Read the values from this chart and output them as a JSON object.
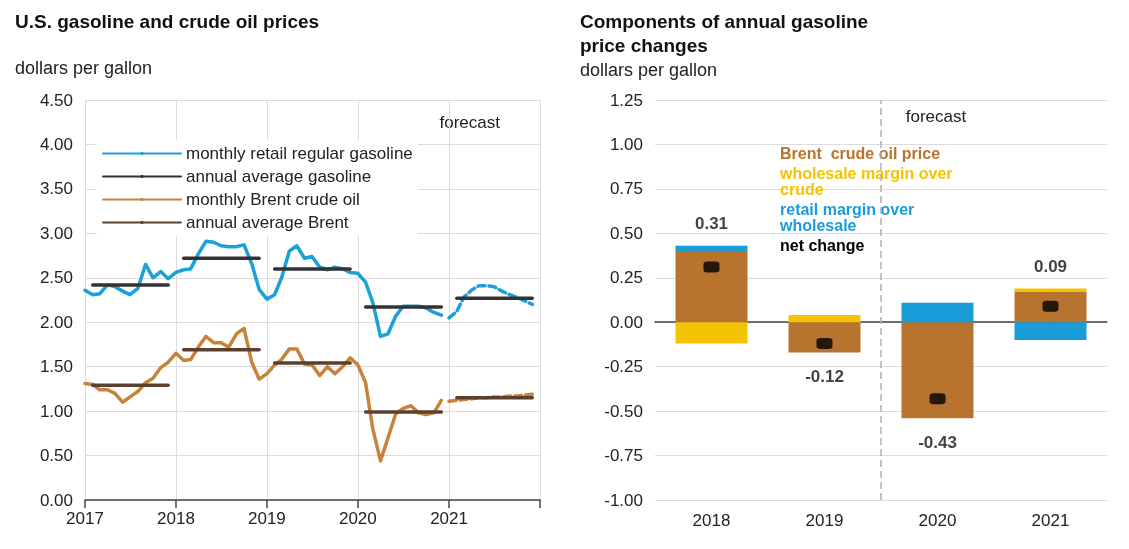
{
  "chart_data": [
    {
      "type": "line",
      "title": "U.S. gasoline and crude oil prices",
      "ylabel": "dollars per gallon",
      "annotations": [
        "forecast"
      ],
      "xlim": [
        "2017-01",
        "2022-01"
      ],
      "xticks": [
        {
          "value": "2017-01",
          "label": "2017"
        },
        {
          "value": "2018-01",
          "label": "2018"
        },
        {
          "value": "2019-01",
          "label": "2019"
        },
        {
          "value": "2020-01",
          "label": "2020"
        },
        {
          "value": "2021-01",
          "label": "2021"
        },
        {
          "value": "2022-01",
          "label": null
        }
      ],
      "ylim": [
        0,
        4.5
      ],
      "yticks": [
        {
          "value": 0,
          "label": "0.00"
        },
        {
          "value": 0.5,
          "label": "0.50"
        },
        {
          "value": 1,
          "label": "1.00"
        },
        {
          "value": 1.5,
          "label": "1.50"
        },
        {
          "value": 2,
          "label": "2.00"
        },
        {
          "value": 2.5,
          "label": "2.50"
        },
        {
          "value": 3,
          "label": "3.00"
        },
        {
          "value": 3.5,
          "label": "3.50"
        },
        {
          "value": 4,
          "label": "4.00"
        },
        {
          "value": 4.5,
          "label": "4.50"
        }
      ],
      "grid": true,
      "legend": "top left",
      "marker": "none",
      "series": [
        {
          "name": "monthly retail regular gasoline",
          "color": "#1ca0d8",
          "x": [
            "2017-01",
            "2017-02",
            "2017-03",
            "2017-04",
            "2017-05",
            "2017-06",
            "2017-07",
            "2017-08",
            "2017-09",
            "2017-10",
            "2017-11",
            "2017-12",
            "2018-01",
            "2018-02",
            "2018-03",
            "2018-04",
            "2018-05",
            "2018-06",
            "2018-07",
            "2018-08",
            "2018-09",
            "2018-10",
            "2018-11",
            "2018-12",
            "2019-01",
            "2019-02",
            "2019-03",
            "2019-04",
            "2019-05",
            "2019-06",
            "2019-07",
            "2019-08",
            "2019-09",
            "2019-10",
            "2019-11",
            "2019-12",
            "2020-01",
            "2020-02",
            "2020-03",
            "2020-04",
            "2020-05",
            "2020-06",
            "2020-07",
            "2020-08",
            "2020-09",
            "2020-10",
            "2020-11",
            "2020-12"
          ],
          "values": [
            2.36,
            2.31,
            2.32,
            2.42,
            2.4,
            2.35,
            2.31,
            2.38,
            2.65,
            2.5,
            2.57,
            2.49,
            2.56,
            2.59,
            2.6,
            2.77,
            2.91,
            2.9,
            2.86,
            2.85,
            2.85,
            2.87,
            2.66,
            2.37,
            2.26,
            2.31,
            2.5,
            2.8,
            2.86,
            2.72,
            2.74,
            2.62,
            2.59,
            2.62,
            2.6,
            2.56,
            2.55,
            2.45,
            2.22,
            1.84,
            1.87,
            2.07,
            2.18,
            2.18,
            2.18,
            2.16,
            2.11,
            2.08
          ]
        },
        {
          "color": "#1ca0d8",
          "line_style": "dashed",
          "x": [
            "2021-01",
            "2021-02",
            "2021-03",
            "2021-04",
            "2021-05",
            "2021-06",
            "2021-07",
            "2021-08",
            "2021-09",
            "2021-10",
            "2021-11",
            "2021-12"
          ],
          "values": [
            2.05,
            2.12,
            2.28,
            2.36,
            2.41,
            2.41,
            2.4,
            2.35,
            2.31,
            2.28,
            2.24,
            2.2
          ]
        },
        {
          "name": "annual average gasoline",
          "color": "#333333",
          "x": [
            "2017-02",
            "2017-12",
            "2018-01",
            "2018-02",
            "2018-12",
            "2019-01",
            "2019-02",
            "2019-12",
            "2020-01",
            "2020-02",
            "2020-12",
            "2021-01",
            "2021-02",
            "2021-12"
          ],
          "values": [
            2.42,
            2.42,
            null,
            2.72,
            2.72,
            null,
            2.6,
            2.6,
            null,
            2.17,
            2.17,
            null,
            2.27,
            2.27
          ]
        },
        {
          "name": "monthly Brent crude oil",
          "color": "#c8823a",
          "x": [
            "2017-01",
            "2017-02",
            "2017-03",
            "2017-04",
            "2017-05",
            "2017-06",
            "2017-07",
            "2017-08",
            "2017-09",
            "2017-10",
            "2017-11",
            "2017-12",
            "2018-01",
            "2018-02",
            "2018-03",
            "2018-04",
            "2018-05",
            "2018-06",
            "2018-07",
            "2018-08",
            "2018-09",
            "2018-10",
            "2018-11",
            "2018-12",
            "2019-01",
            "2019-02",
            "2019-03",
            "2019-04",
            "2019-05",
            "2019-06",
            "2019-07",
            "2019-08",
            "2019-09",
            "2019-10",
            "2019-11",
            "2019-12",
            "2020-01",
            "2020-02",
            "2020-03",
            "2020-04",
            "2020-05",
            "2020-06",
            "2020-07",
            "2020-08",
            "2020-09",
            "2020-10",
            "2020-11",
            "2020-12"
          ],
          "values": [
            1.31,
            1.3,
            1.24,
            1.24,
            1.2,
            1.1,
            1.16,
            1.22,
            1.32,
            1.37,
            1.49,
            1.55,
            1.65,
            1.57,
            1.58,
            1.72,
            1.84,
            1.77,
            1.77,
            1.72,
            1.87,
            1.93,
            1.55,
            1.36,
            1.42,
            1.52,
            1.58,
            1.7,
            1.7,
            1.53,
            1.52,
            1.4,
            1.5,
            1.42,
            1.5,
            1.6,
            1.52,
            1.32,
            0.8,
            0.44,
            0.7,
            0.97,
            1.03,
            1.06,
            0.98,
            0.96,
            0.98,
            1.12
          ]
        },
        {
          "color": "#c8823a",
          "line_style": "dashed",
          "x": [
            "2021-01",
            "2021-02",
            "2021-03",
            "2021-04",
            "2021-05",
            "2021-06",
            "2021-07",
            "2021-08",
            "2021-09",
            "2021-10",
            "2021-11",
            "2021-12"
          ],
          "values": [
            1.11,
            1.12,
            1.13,
            1.14,
            1.15,
            1.15,
            1.16,
            1.16,
            1.17,
            1.17,
            1.18,
            1.19
          ]
        },
        {
          "name": "annual average Brent",
          "color": "#5b4030",
          "x": [
            "2017-02",
            "2017-12",
            "2018-01",
            "2018-02",
            "2018-12",
            "2019-01",
            "2019-02",
            "2019-12",
            "2020-01",
            "2020-02",
            "2020-12",
            "2021-01",
            "2021-02",
            "2021-12"
          ],
          "values": [
            1.29,
            1.29,
            null,
            1.69,
            1.69,
            null,
            1.54,
            1.54,
            null,
            0.99,
            0.99,
            null,
            1.15,
            1.15
          ]
        }
      ]
    },
    {
      "type": "bar",
      "stacked": true,
      "title": "Components of annual gasoline price changes",
      "ylabel": "dollars per gallon",
      "x": [
        2018,
        2019,
        2020,
        2021
      ],
      "xlim": [
        2017.5,
        2021.5
      ],
      "xticks": [
        2018,
        2019,
        2020,
        2021
      ],
      "ylim": [
        -1,
        1.25
      ],
      "yticks": [
        {
          "value": -1,
          "label": "-1.00"
        },
        {
          "value": -0.75,
          "label": "-0.75"
        },
        {
          "value": -0.5,
          "label": "-0.50"
        },
        {
          "value": -0.25,
          "label": "-0.25"
        },
        {
          "value": 0,
          "label": "0.00"
        },
        {
          "value": 0.25,
          "label": "0.25"
        },
        {
          "value": 0.5,
          "label": "0.50"
        },
        {
          "value": 0.75,
          "label": "0.75"
        },
        {
          "value": 1,
          "label": "1.00"
        },
        {
          "value": 1.25,
          "label": "1.25"
        }
      ],
      "grid": "y",
      "legend": "top",
      "ref_lines": [
        {
          "axis": "x",
          "value": 2019.5,
          "label": "forecast",
          "line_style": "dashed",
          "color": "#b0b0b0"
        }
      ],
      "series": [
        {
          "name": "Brent  crude oil price",
          "color": "#b8732f",
          "values": [
            0.4,
            -0.17,
            -0.54,
            0.17
          ]
        },
        {
          "name": "wholesale margin over crude",
          "color": "#f5c400",
          "values": [
            -0.12,
            0.04,
            0,
            0.02
          ]
        },
        {
          "name": "retail margin over wholesale",
          "color": "#1a9cd8",
          "values": [
            0.03,
            0,
            0.11,
            -0.1
          ]
        },
        {
          "name": "net change",
          "type": "scatter",
          "color": "#000000",
          "values": [
            0.31,
            -0.12,
            -0.43,
            0.09
          ],
          "data_labels": true
        }
      ]
    }
  ]
}
